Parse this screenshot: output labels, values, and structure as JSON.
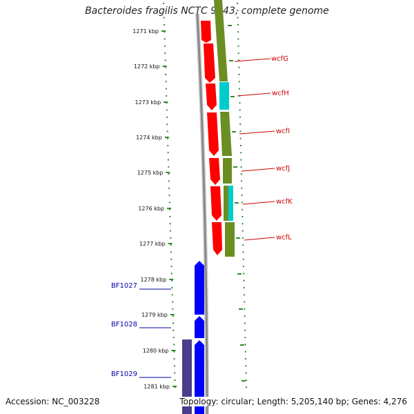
{
  "title": "Bacteroides fragilis NCTC 9343, complete genome",
  "footer": {
    "accession": "Accession: NC_003228",
    "summary": "Topology: circular; Length: 5,205,140 bp; Genes: 4,276"
  },
  "ticks": [
    "1271 kbp",
    "1272 kbp",
    "1273 kbp",
    "1274 kbp",
    "1275 kbp",
    "1276 kbp",
    "1277 kbp",
    "1278 kbp",
    "1279 kbp",
    "1280 kbp",
    "1281 kbp"
  ],
  "right_genes": [
    {
      "label": "wcfG",
      "color": "#cc0000"
    },
    {
      "label": "wcfH",
      "color": "#cc0000"
    },
    {
      "label": "wcfI",
      "color": "#cc0000"
    },
    {
      "label": "wcfJ",
      "color": "#cc0000"
    },
    {
      "label": "wcfK",
      "color": "#cc0000"
    },
    {
      "label": "wcfL",
      "color": "#cc0000"
    }
  ],
  "left_genes": [
    {
      "label": "BF1027",
      "color": "#0000aa"
    },
    {
      "label": "BF1028",
      "color": "#0000aa"
    },
    {
      "label": "BF1029",
      "color": "#0000aa"
    }
  ],
  "colors": {
    "forward_cds": "#ff0000",
    "reverse_cds": "#0000ff",
    "cog_olive": "#6b8e23",
    "cog_cyan": "#00cccc",
    "cog_purple": "#4b3c8c",
    "backbone": "#888888",
    "tick": "#2e8b2e"
  }
}
